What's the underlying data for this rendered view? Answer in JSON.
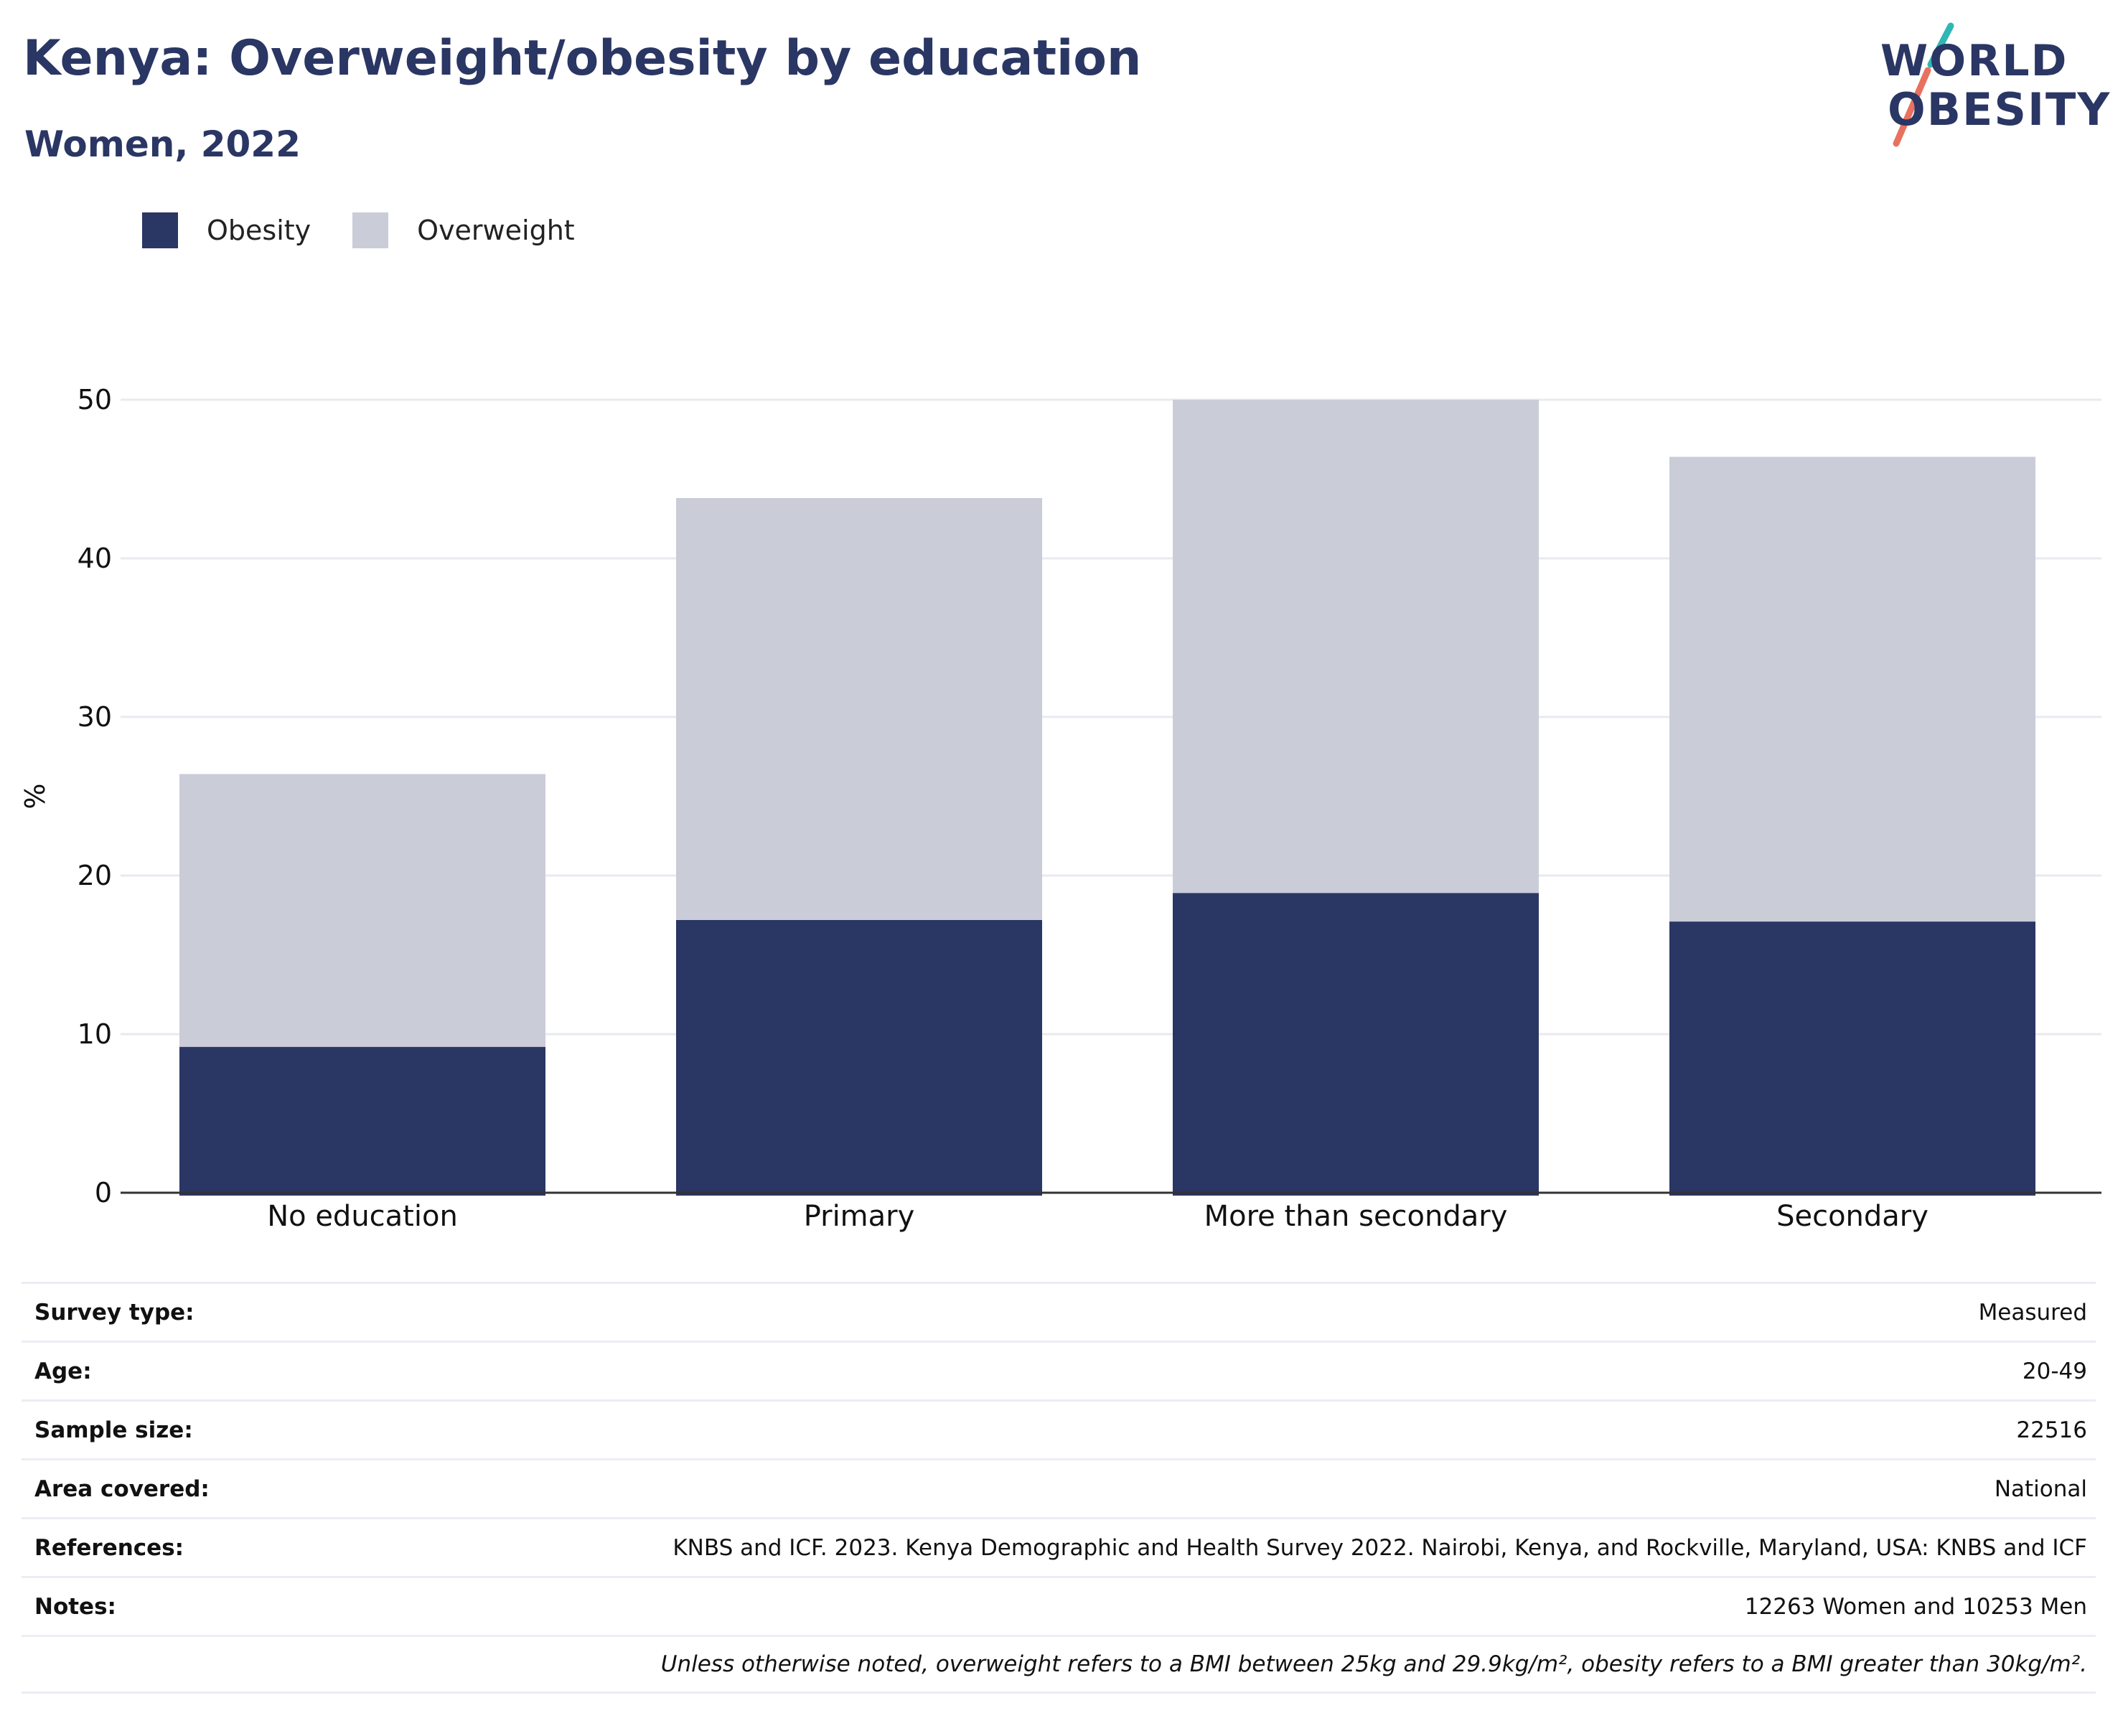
{
  "header": {
    "title": "Kenya: Overweight/obesity by education",
    "subtitle": "Women, 2022"
  },
  "logo": {
    "line1": "WORLD",
    "line2": "OBESITY",
    "accent_teal": "#2fb7b5",
    "accent_coral": "#e8715f"
  },
  "colors": {
    "obesity": "#2a3663",
    "overweight": "#cacdd8",
    "grid": "#e9eaf0",
    "axis": "#333333"
  },
  "chart_data": {
    "type": "bar",
    "stacked": true,
    "categories": [
      "No education",
      "Primary",
      "More than secondary",
      "Secondary"
    ],
    "series": [
      {
        "name": "Obesity",
        "values": [
          9.2,
          17.2,
          18.9,
          17.1
        ]
      },
      {
        "name": "Overweight",
        "values": [
          17.2,
          26.6,
          31.1,
          29.3
        ]
      }
    ],
    "ylabel": "%",
    "xlabel": "",
    "ylim": [
      0,
      50
    ],
    "yticks": [
      0,
      10,
      20,
      30,
      40,
      50
    ],
    "grid": true,
    "legend_position": "top-left"
  },
  "info": {
    "rows": [
      {
        "key": "Survey type:",
        "value": "Measured"
      },
      {
        "key": "Age:",
        "value": "20-49"
      },
      {
        "key": "Sample size:",
        "value": "22516"
      },
      {
        "key": "Area covered:",
        "value": "National"
      },
      {
        "key": "References:",
        "value": "KNBS and ICF. 2023. Kenya Demographic and Health Survey 2022. Nairobi, Kenya, and Rockville, Maryland, USA: KNBS and ICF"
      },
      {
        "key": "Notes:",
        "value": "12263 Women and 10253 Men"
      }
    ],
    "footnote": "Unless otherwise noted, overweight refers to a BMI between 25kg and 29.9kg/m², obesity refers to a BMI greater than 30kg/m²."
  }
}
